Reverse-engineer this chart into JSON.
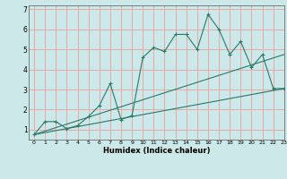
{
  "bg_color": "#cce8e8",
  "grid_color": "#e8a0a0",
  "line_color": "#2a7a6a",
  "xlabel": "Humidex (Indice chaleur)",
  "xlim": [
    -0.5,
    23
  ],
  "ylim": [
    0.5,
    7.2
  ],
  "yticks": [
    1,
    2,
    3,
    4,
    5,
    6,
    7
  ],
  "xticks": [
    0,
    1,
    2,
    3,
    4,
    5,
    6,
    7,
    8,
    9,
    10,
    11,
    12,
    13,
    14,
    15,
    16,
    17,
    18,
    19,
    20,
    21,
    22,
    23
  ],
  "line1_x": [
    0,
    1,
    2,
    3,
    4,
    5,
    6,
    7,
    8,
    9,
    10,
    11,
    12,
    13,
    14,
    15,
    16,
    17,
    18,
    19,
    20,
    21,
    22,
    23
  ],
  "line1_y": [
    0.75,
    1.4,
    1.4,
    1.05,
    1.2,
    1.65,
    2.2,
    3.3,
    1.5,
    1.7,
    4.6,
    5.1,
    4.9,
    5.75,
    5.75,
    5.0,
    6.75,
    6.0,
    4.75,
    5.4,
    4.1,
    4.75,
    3.05,
    3.05
  ],
  "line2_x": [
    0,
    23
  ],
  "line2_y": [
    0.75,
    4.75
  ],
  "line3_x": [
    0,
    23
  ],
  "line3_y": [
    0.75,
    3.05
  ],
  "figsize": [
    3.2,
    2.0
  ],
  "dpi": 100
}
